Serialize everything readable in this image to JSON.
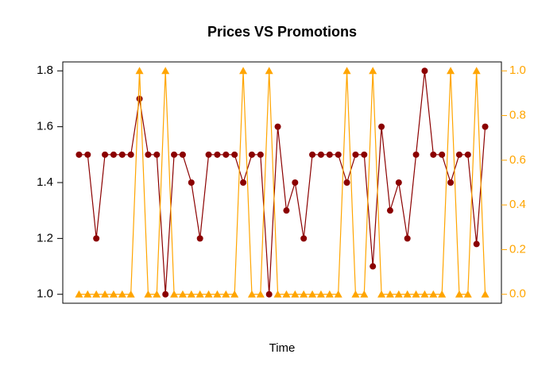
{
  "chart_data": {
    "type": "line",
    "title": "Prices VS Promotions",
    "xlabel": "Time",
    "x": [
      1,
      2,
      3,
      4,
      5,
      6,
      7,
      8,
      9,
      10,
      11,
      12,
      13,
      14,
      15,
      16,
      17,
      18,
      19,
      20,
      21,
      22,
      23,
      24,
      25,
      26,
      27,
      28,
      29,
      30,
      31,
      32,
      33,
      34,
      35,
      36,
      37,
      38,
      39,
      40,
      41,
      42,
      43,
      44,
      45,
      46,
      47,
      48
    ],
    "xlim": [
      -0.88,
      49.88
    ],
    "ylim": [
      0.968,
      1.832
    ],
    "yticks": [
      {
        "value": 1.0,
        "label": "1.0"
      },
      {
        "value": 1.2,
        "label": "1.2"
      },
      {
        "value": 1.4,
        "label": "1.4"
      },
      {
        "value": 1.6,
        "label": "1.6"
      },
      {
        "value": 1.8,
        "label": "1.8"
      }
    ],
    "y2lim": [
      -0.04,
      1.04
    ],
    "y2ticks": [
      {
        "value": 0,
        "label": "0.0"
      },
      {
        "value": 0.2,
        "label": "0.2"
      },
      {
        "value": 0.4,
        "label": "0.4"
      },
      {
        "value": 0.6,
        "label": "0.6"
      },
      {
        "value": 0.8,
        "label": "0.8"
      },
      {
        "value": 1.0,
        "label": "1.0"
      }
    ],
    "y2color": "#ffa500",
    "series": [
      {
        "color": "#8b0000",
        "marker": "circle",
        "values": [
          1.5,
          1.5,
          1.2,
          1.5,
          1.5,
          1.5,
          1.5,
          1.7,
          1.5,
          1.5,
          1.0,
          1.5,
          1.5,
          1.4,
          1.2,
          1.5,
          1.5,
          1.5,
          1.5,
          1.4,
          1.5,
          1.5,
          1.0,
          1.6,
          1.3,
          1.4,
          1.2,
          1.5,
          1.5,
          1.5,
          1.5,
          1.4,
          1.5,
          1.5,
          1.1,
          1.6,
          1.3,
          1.4,
          1.2,
          1.5,
          1.8,
          1.5,
          1.5,
          1.4,
          1.5,
          1.5,
          1.18,
          1.6
        ]
      },
      {
        "color": "#ffa500",
        "marker": "triangle",
        "axis": "y2",
        "values": [
          0,
          0,
          0,
          0,
          0,
          0,
          0,
          1,
          0,
          0,
          1,
          0,
          0,
          0,
          0,
          0,
          0,
          0,
          0,
          1,
          0,
          0,
          1,
          0,
          0,
          0,
          0,
          0,
          0,
          0,
          0,
          1,
          0,
          0,
          1,
          0,
          0,
          0,
          0,
          0,
          0,
          0,
          0,
          1,
          0,
          0,
          1,
          0
        ]
      }
    ]
  }
}
